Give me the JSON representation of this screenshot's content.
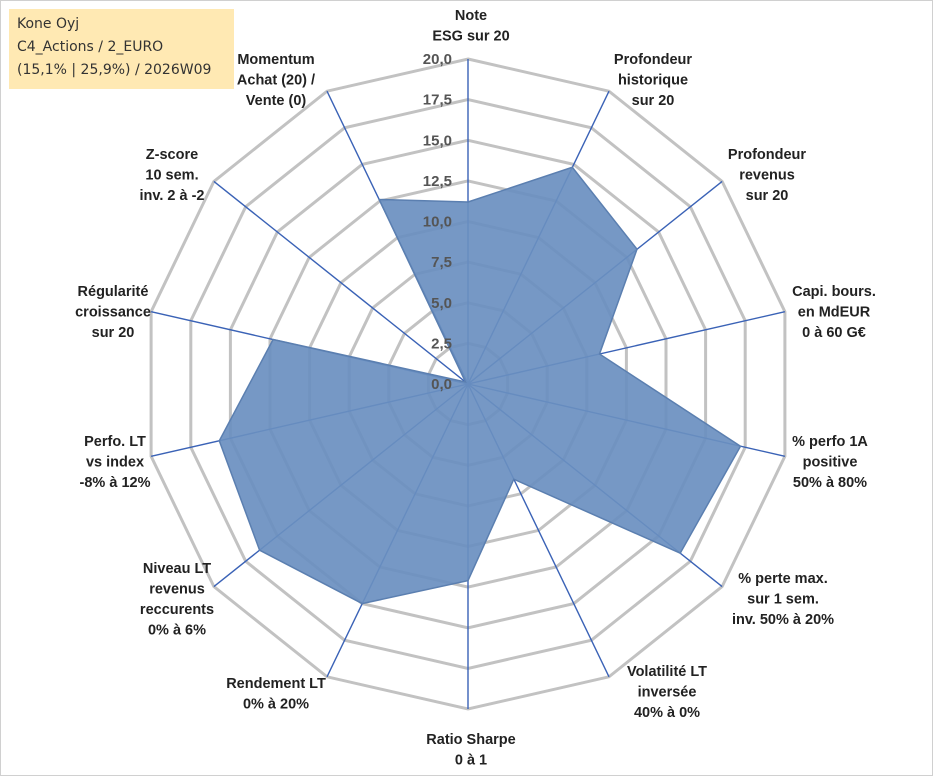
{
  "info": {
    "line1": "Kone Oyj",
    "line2": "C4_Actions / 2_EURO",
    "line3": "(15,1% | 25,9%) / 2026W09"
  },
  "chart_data": {
    "type": "radar",
    "title": "Kone Oyj",
    "rmin": 0,
    "rmax": 20,
    "ticks": [
      "0,0",
      "2,5",
      "5,0",
      "7,5",
      "10,0",
      "12,5",
      "15,0",
      "17,5",
      "20,0"
    ],
    "axes": [
      {
        "name": "Note ESG sur 20",
        "lines": [
          "Note",
          "ESG sur 20"
        ],
        "value": 11.2
      },
      {
        "name": "Profondeur historique sur 20",
        "lines": [
          "Profondeur",
          "historique",
          "sur 20"
        ],
        "value": 14.8
      },
      {
        "name": "Profondeur revenus sur 20",
        "lines": [
          "Profondeur",
          "revenus",
          "sur 20"
        ],
        "value": 13.3
      },
      {
        "name": "Capi. bours. en MdEUR 0 à 60 G€",
        "lines": [
          "Capi. bours.",
          "en MdEUR",
          "0 à 60 G€"
        ],
        "value": 8.3
      },
      {
        "name": "% perfo 1A positive 50% à 80%",
        "lines": [
          "% perfo 1A",
          "positive",
          "50% à 80%"
        ],
        "value": 17.2
      },
      {
        "name": "% perte max. sur 1 sem. inv. 50% à 20%",
        "lines": [
          "% perte max.",
          "sur 1 sem.",
          "inv. 50% à 20%"
        ],
        "value": 16.7
      },
      {
        "name": "Volatilité LT inversée 40% à 0%",
        "lines": [
          "Volatilité LT",
          "inversée",
          "40% à 0%"
        ],
        "value": 6.5
      },
      {
        "name": "Ratio Sharpe 0 à 1",
        "lines": [
          "Ratio Sharpe",
          "0 à 1"
        ],
        "value": 12.1
      },
      {
        "name": "Rendement LT 0% à 20%",
        "lines": [
          "Rendement LT",
          "0% à 20%"
        ],
        "value": 15.0
      },
      {
        "name": "Niveau LT revenus reccurents 0% à 6%",
        "lines": [
          "Niveau LT",
          "revenus",
          "reccurents",
          "0% à 6%"
        ],
        "value": 16.4
      },
      {
        "name": "Perfo. LT vs index -8% à 12%",
        "lines": [
          "Perfo. LT",
          "vs index",
          "-8% à 12%"
        ],
        "value": 15.7
      },
      {
        "name": "Régularité croissance sur 20",
        "lines": [
          "Régularité",
          "croissance",
          "sur 20"
        ],
        "value": 12.3
      },
      {
        "name": "Z-score 10 sem. inv. 2 à -2",
        "lines": [
          "Z-score",
          "10 sem.",
          "inv. 2 à -2"
        ],
        "value": 0.2
      },
      {
        "name": "Momentum Achat (20) / Vente (0)",
        "lines": [
          "Momentum",
          "Achat (20) /",
          "Vente (0)"
        ],
        "value": 12.6
      }
    ],
    "colors": {
      "fill": "#6a8fc0",
      "spokes": "#3a62b6",
      "grid": "#c2c2c2",
      "info_bg": "#ffe9b3"
    }
  }
}
